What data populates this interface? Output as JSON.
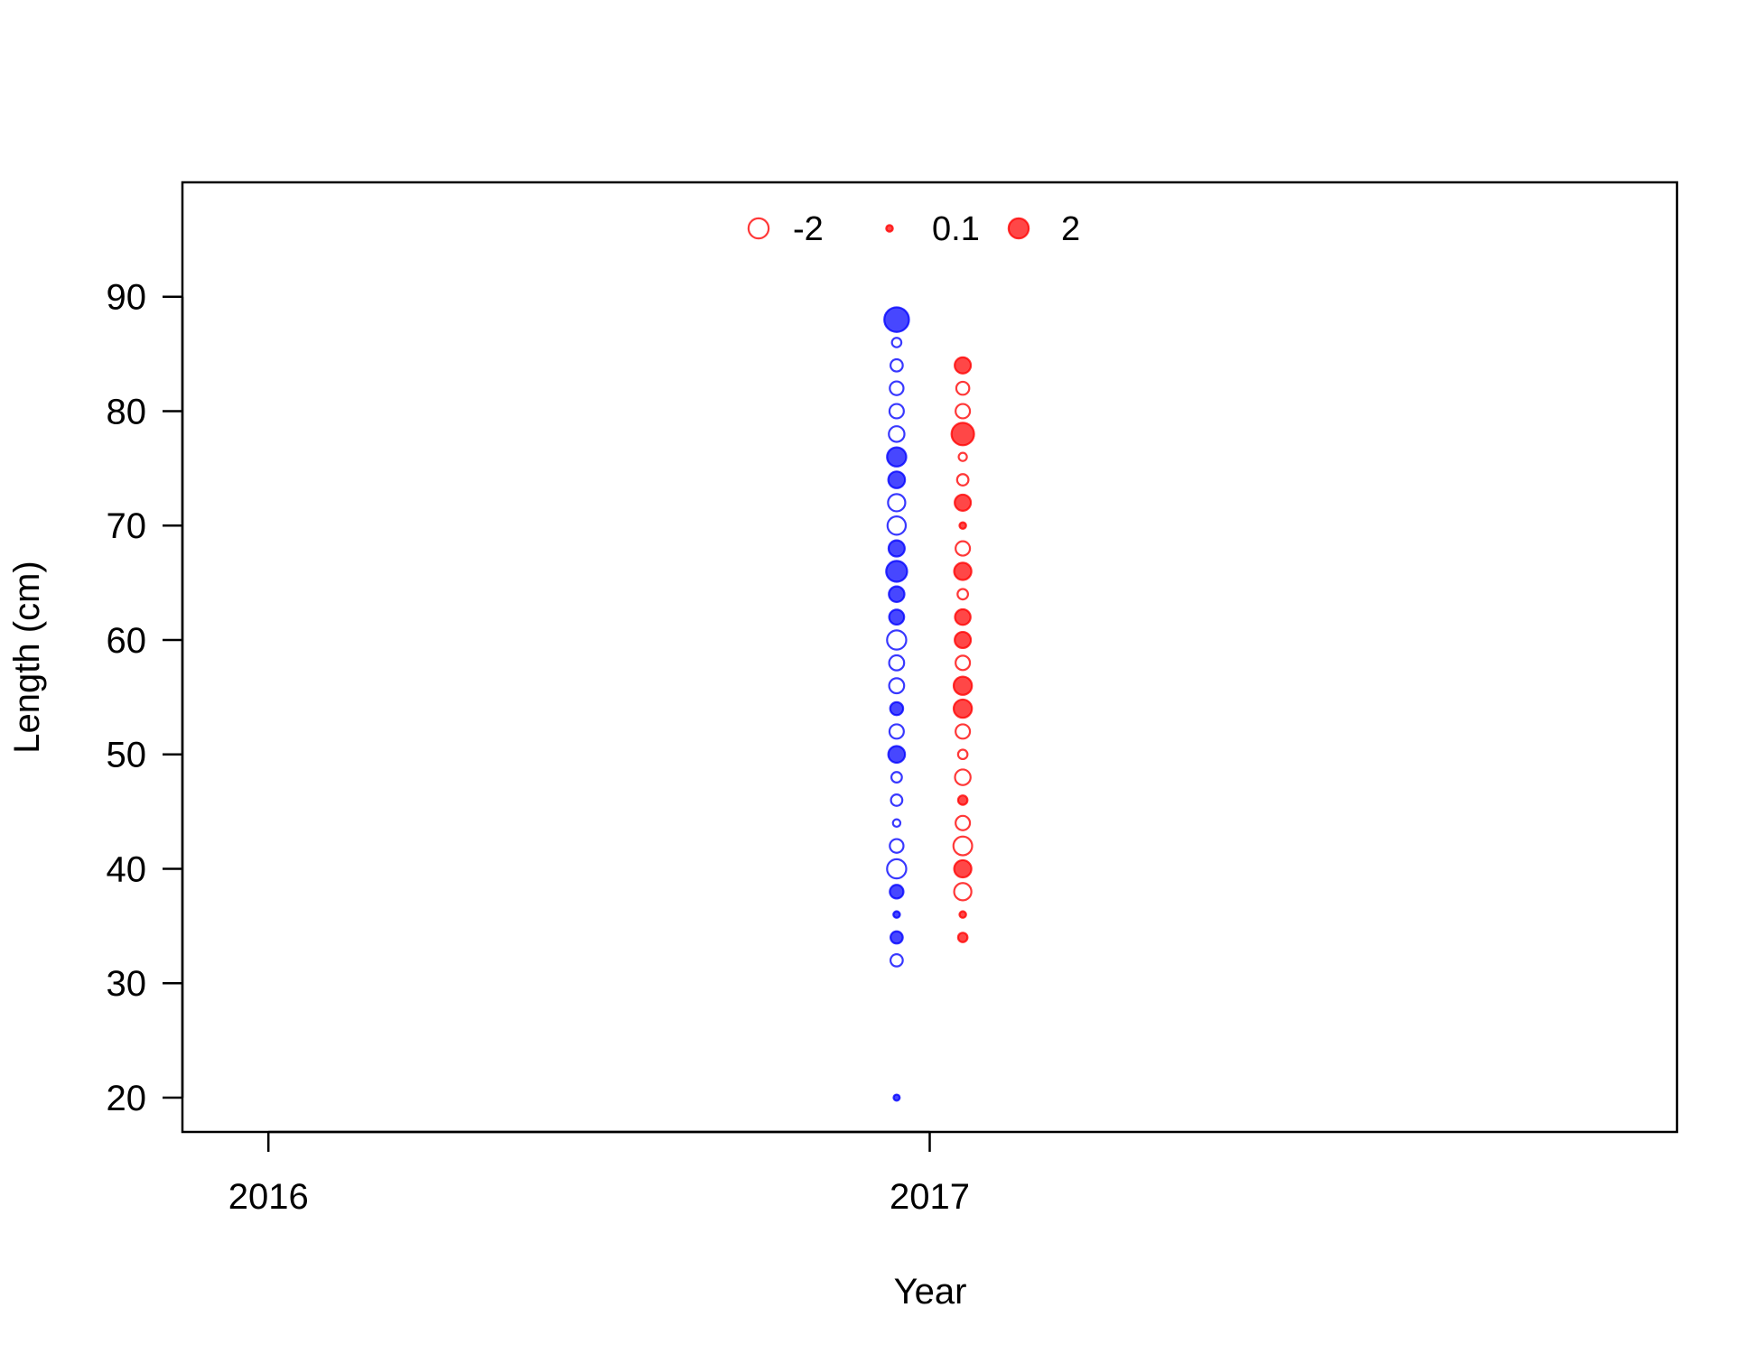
{
  "chart_data": {
    "type": "scatter",
    "title": "",
    "xlabel": "Year",
    "ylabel": "Length (cm)",
    "xlim": [
      2015.87,
      2018.13
    ],
    "ylim": [
      17,
      100
    ],
    "x_ticks": [
      2016,
      2017
    ],
    "y_ticks": [
      20,
      30,
      40,
      50,
      60,
      70,
      80,
      90
    ],
    "grid": false,
    "legend": {
      "position": "top-center",
      "color": "#ff0000",
      "entries": [
        {
          "label": "-2",
          "value": -2
        },
        {
          "label": "0.1",
          "value": 0.1
        },
        {
          "label": "2",
          "value": 2
        }
      ]
    },
    "size_encoding": "bubble area proportional to |residual|; filled = positive, open = negative",
    "series": [
      {
        "color": "#0000ff",
        "x": 2016.95,
        "points": [
          {
            "y": 88,
            "value": 3.2
          },
          {
            "y": 86,
            "value": -0.3
          },
          {
            "y": 84,
            "value": -0.6
          },
          {
            "y": 82,
            "value": -0.8
          },
          {
            "y": 80,
            "value": -0.9
          },
          {
            "y": 78,
            "value": -1.1
          },
          {
            "y": 76,
            "value": 1.8
          },
          {
            "y": 74,
            "value": 1.3
          },
          {
            "y": 72,
            "value": -1.4
          },
          {
            "y": 70,
            "value": -1.6
          },
          {
            "y": 68,
            "value": 1.2
          },
          {
            "y": 66,
            "value": 2.2
          },
          {
            "y": 64,
            "value": 1.1
          },
          {
            "y": 62,
            "value": 1.0
          },
          {
            "y": 60,
            "value": -1.8
          },
          {
            "y": 58,
            "value": -1.0
          },
          {
            "y": 56,
            "value": -1.0
          },
          {
            "y": 54,
            "value": 0.7
          },
          {
            "y": 52,
            "value": -0.9
          },
          {
            "y": 50,
            "value": 1.3
          },
          {
            "y": 48,
            "value": -0.4
          },
          {
            "y": 46,
            "value": -0.5
          },
          {
            "y": 44,
            "value": -0.15
          },
          {
            "y": 42,
            "value": -0.8
          },
          {
            "y": 40,
            "value": -1.8
          },
          {
            "y": 38,
            "value": 0.8
          },
          {
            "y": 36,
            "value": 0.1
          },
          {
            "y": 34,
            "value": 0.6
          },
          {
            "y": 32,
            "value": -0.6
          },
          {
            "y": 20,
            "value": 0.08
          }
        ]
      },
      {
        "color": "#ff0000",
        "x": 2017.05,
        "points": [
          {
            "y": 84,
            "value": 1.2
          },
          {
            "y": 82,
            "value": -0.7
          },
          {
            "y": 80,
            "value": -0.9
          },
          {
            "y": 78,
            "value": 2.6
          },
          {
            "y": 76,
            "value": -0.2
          },
          {
            "y": 74,
            "value": -0.5
          },
          {
            "y": 72,
            "value": 1.2
          },
          {
            "y": 70,
            "value": 0.1
          },
          {
            "y": 68,
            "value": -0.9
          },
          {
            "y": 66,
            "value": 1.4
          },
          {
            "y": 64,
            "value": -0.4
          },
          {
            "y": 62,
            "value": 1.1
          },
          {
            "y": 60,
            "value": 1.2
          },
          {
            "y": 58,
            "value": -0.9
          },
          {
            "y": 56,
            "value": 1.6
          },
          {
            "y": 54,
            "value": 1.6
          },
          {
            "y": 52,
            "value": -0.9
          },
          {
            "y": 50,
            "value": -0.3
          },
          {
            "y": 48,
            "value": -1.1
          },
          {
            "y": 46,
            "value": 0.3
          },
          {
            "y": 44,
            "value": -0.9
          },
          {
            "y": 42,
            "value": -1.7
          },
          {
            "y": 40,
            "value": 1.4
          },
          {
            "y": 38,
            "value": -1.4
          },
          {
            "y": 36,
            "value": 0.1
          },
          {
            "y": 34,
            "value": 0.3
          }
        ]
      }
    ]
  }
}
